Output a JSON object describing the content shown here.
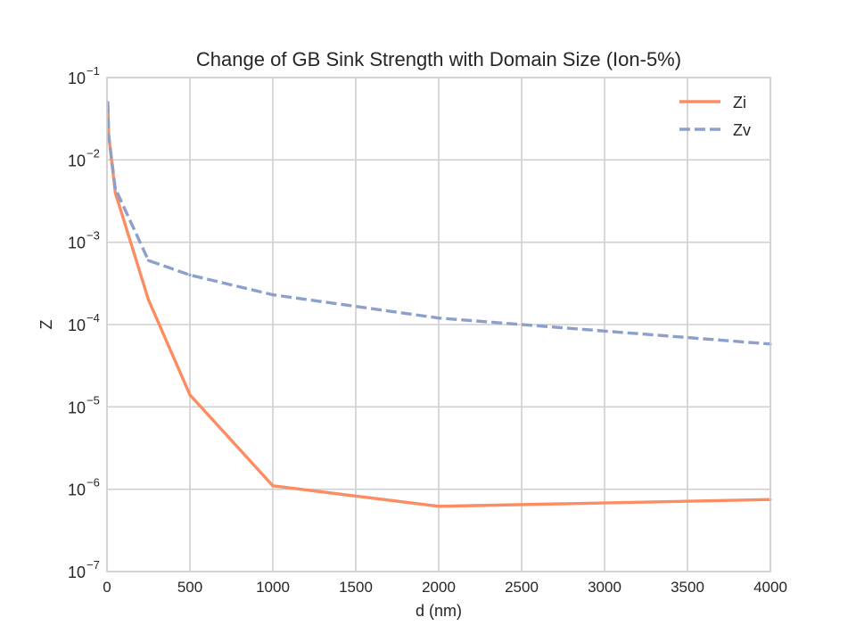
{
  "chart_data": {
    "type": "line",
    "title": "Change of GB Sink Strength with Domain Size (Ion-5%)",
    "xlabel": "d (nm)",
    "ylabel": "Z",
    "xlim": [
      0,
      4000
    ],
    "ylim": [
      1e-07,
      0.1
    ],
    "yscale": "log",
    "grid": true,
    "legend": "top-right",
    "x_ticks": [
      {
        "value": 0,
        "label": "0"
      },
      {
        "value": 500,
        "label": "500"
      },
      {
        "value": 1000,
        "label": "1000"
      },
      {
        "value": 1500,
        "label": "1500"
      },
      {
        "value": 2000,
        "label": "2000"
      },
      {
        "value": 2500,
        "label": "2500"
      },
      {
        "value": 3000,
        "label": "3000"
      },
      {
        "value": 3500,
        "label": "3500"
      },
      {
        "value": 4000,
        "label": "4000"
      }
    ],
    "y_ticks": [
      {
        "value": 1e-07,
        "base": "10",
        "exp": "−7"
      },
      {
        "value": 1e-06,
        "base": "10",
        "exp": "−6"
      },
      {
        "value": 1e-05,
        "base": "10",
        "exp": "−5"
      },
      {
        "value": 0.0001,
        "base": "10",
        "exp": "−4"
      },
      {
        "value": 0.001,
        "base": "10",
        "exp": "−3"
      },
      {
        "value": 0.01,
        "base": "10",
        "exp": "−2"
      },
      {
        "value": 0.1,
        "base": "10",
        "exp": "−1"
      }
    ],
    "series": [
      {
        "name": "Zi",
        "color": "#fc8d62",
        "dash": "solid",
        "x": [
          5,
          10,
          50,
          250,
          500,
          1000,
          2000,
          4000
        ],
        "y": [
          0.045,
          0.02,
          0.004,
          0.0002,
          1.4e-05,
          1.1e-06,
          6.2e-07,
          7.5e-07
        ]
      },
      {
        "name": "Zv",
        "color": "#8da0cb",
        "dash": "dashed",
        "x": [
          5,
          10,
          50,
          250,
          500,
          1000,
          2000,
          4000
        ],
        "y": [
          0.05,
          0.02,
          0.0045,
          0.0006,
          0.0004,
          0.00023,
          0.00012,
          5.8e-05
        ]
      }
    ]
  }
}
